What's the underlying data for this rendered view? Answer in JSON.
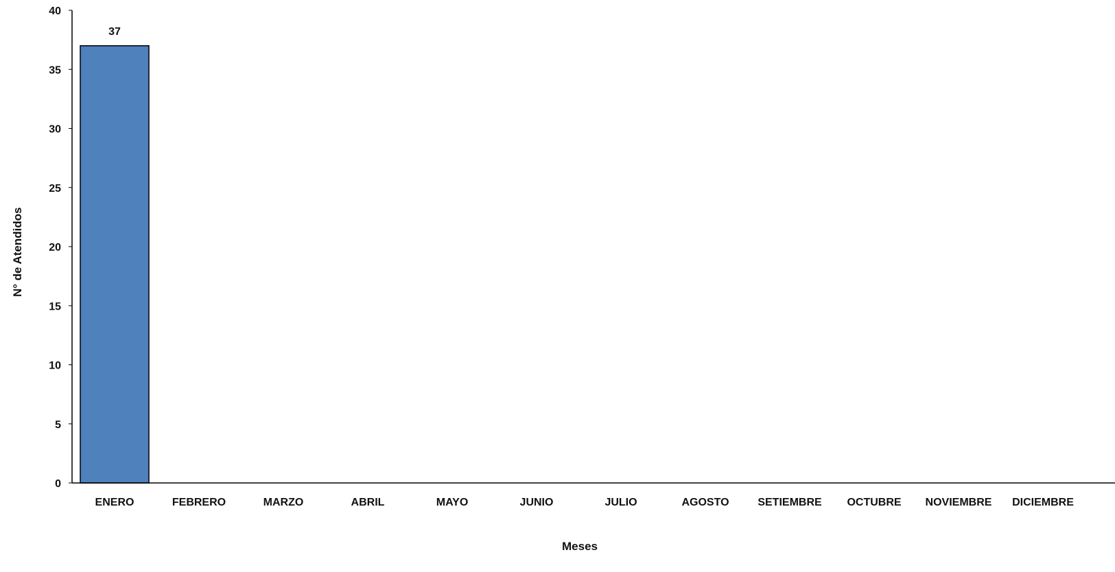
{
  "chart_data": {
    "type": "bar",
    "title": "",
    "xlabel": "Meses",
    "ylabel": "N° de Atendidos",
    "categories": [
      "ENERO",
      "FEBRERO",
      "MARZO",
      "ABRIL",
      "MAYO",
      "JUNIO",
      "JULIO",
      "AGOSTO",
      "SETIEMBRE",
      "OCTUBRE",
      "NOVIEMBRE",
      "DICIEMBRE"
    ],
    "series": [
      {
        "values": [
          37,
          null,
          null,
          null,
          null,
          null,
          null,
          null,
          null,
          null,
          null,
          null
        ],
        "color": "#4F81BD"
      }
    ],
    "data_labels": [
      "37",
      "",
      "",
      "",
      "",
      "",
      "",
      "",
      "",
      "",
      "",
      ""
    ],
    "ylim": [
      0,
      40
    ],
    "yticks": [
      0,
      5,
      10,
      15,
      20,
      25,
      30,
      35,
      40
    ],
    "grid": false,
    "legend": "none"
  }
}
